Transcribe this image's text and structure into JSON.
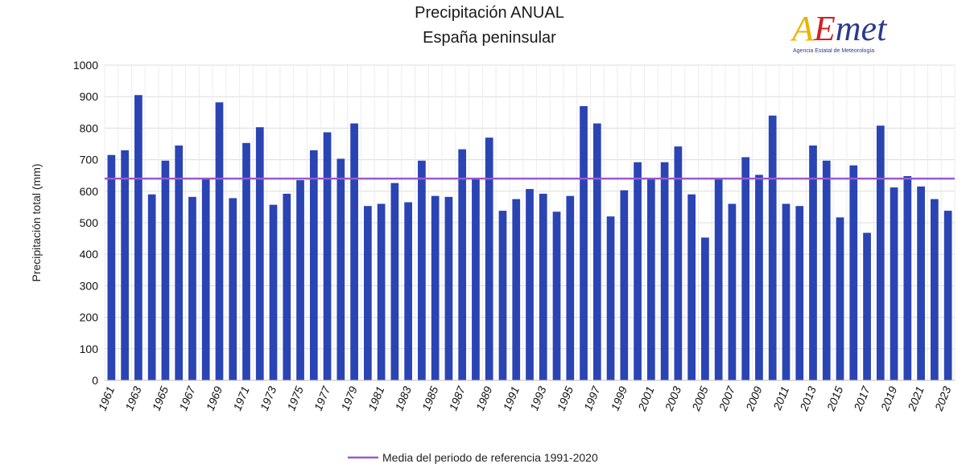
{
  "logo": {
    "wordmark": "AEMet",
    "subtitle": "Agencia Estatal de Meteorología"
  },
  "chart_data": {
    "type": "bar",
    "title": "Precipitación ANUAL",
    "subtitle": "España peninsular",
    "xlabel": "",
    "ylabel": "Precipitación total (mm)",
    "ylim": [
      0,
      1000
    ],
    "yticks": [
      0,
      100,
      200,
      300,
      400,
      500,
      600,
      700,
      800,
      900,
      1000
    ],
    "grid": true,
    "legend_position": "bottom-center",
    "bar_color": "#2a44b4",
    "reference_line": {
      "label": "Media del periodo de referencia 1991-2020",
      "value": 640,
      "color": "#9b59d0"
    },
    "categories": [
      "1961",
      "1962",
      "1963",
      "1964",
      "1965",
      "1966",
      "1967",
      "1968",
      "1969",
      "1970",
      "1971",
      "1972",
      "1973",
      "1974",
      "1975",
      "1976",
      "1977",
      "1978",
      "1979",
      "1980",
      "1981",
      "1982",
      "1983",
      "1984",
      "1985",
      "1986",
      "1987",
      "1988",
      "1989",
      "1990",
      "1991",
      "1992",
      "1993",
      "1994",
      "1995",
      "1996",
      "1997",
      "1998",
      "1999",
      "2000",
      "2001",
      "2002",
      "2003",
      "2004",
      "2005",
      "2006",
      "2007",
      "2008",
      "2009",
      "2010",
      "2011",
      "2012",
      "2013",
      "2014",
      "2015",
      "2016",
      "2017",
      "2018",
      "2019",
      "2020",
      "2021",
      "2022",
      "2023"
    ],
    "tick_labels": [
      "1961",
      "1963",
      "1965",
      "1967",
      "1969",
      "1971",
      "1973",
      "1975",
      "1977",
      "1979",
      "1981",
      "1983",
      "1985",
      "1987",
      "1989",
      "1991",
      "1993",
      "1995",
      "1997",
      "1999",
      "2001",
      "2003",
      "2005",
      "2007",
      "2009",
      "2011",
      "2013",
      "2015",
      "2017",
      "2019",
      "2021",
      "2023"
    ],
    "values": [
      715,
      730,
      905,
      590,
      697,
      745,
      582,
      642,
      882,
      578,
      753,
      803,
      557,
      592,
      635,
      730,
      787,
      703,
      815,
      553,
      560,
      626,
      565,
      697,
      585,
      582,
      733,
      640,
      770,
      538,
      575,
      607,
      592,
      535,
      585,
      870,
      815,
      520,
      603,
      692,
      640,
      692,
      742,
      590,
      453,
      640,
      560,
      708,
      652,
      840,
      560,
      553,
      745,
      697,
      517,
      682,
      468,
      808,
      612,
      648,
      615,
      575,
      538
    ]
  }
}
